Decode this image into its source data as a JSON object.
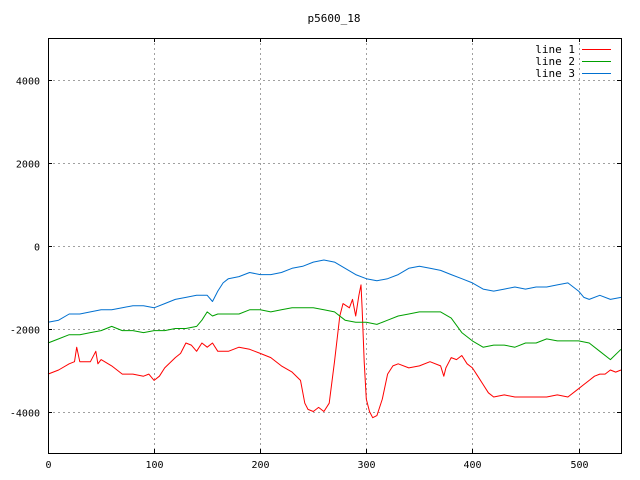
{
  "chart_data": {
    "type": "line",
    "title": "p5600_18",
    "xlabel": "",
    "ylabel": "",
    "xlim": [
      0,
      540
    ],
    "ylim": [
      -5000,
      5000
    ],
    "xticks": [
      0,
      100,
      200,
      300,
      400,
      500
    ],
    "yticks": [
      -4000,
      -2000,
      0,
      2000,
      4000
    ],
    "grid": true,
    "legend_position": "top-right",
    "series": [
      {
        "name": "line 1",
        "color": "#ff0000",
        "x": [
          0,
          10,
          20,
          25,
          27,
          30,
          40,
          45,
          47,
          50,
          60,
          70,
          80,
          90,
          95,
          100,
          105,
          110,
          120,
          125,
          130,
          135,
          140,
          145,
          150,
          155,
          160,
          170,
          180,
          190,
          200,
          210,
          220,
          230,
          238,
          242,
          245,
          250,
          255,
          260,
          265,
          270,
          275,
          278,
          281,
          284,
          287,
          290,
          293,
          295,
          296,
          298,
          300,
          303,
          306,
          310,
          315,
          320,
          325,
          330,
          340,
          350,
          360,
          370,
          373,
          375,
          378,
          380,
          385,
          390,
          395,
          400,
          405,
          410,
          415,
          420,
          430,
          440,
          450,
          460,
          470,
          480,
          490,
          500,
          505,
          510,
          515,
          520,
          525,
          530,
          535,
          540
        ],
        "values": [
          -3100,
          -3000,
          -2850,
          -2800,
          -2450,
          -2800,
          -2800,
          -2550,
          -2850,
          -2750,
          -2900,
          -3100,
          -3100,
          -3150,
          -3100,
          -3250,
          -3150,
          -2950,
          -2700,
          -2600,
          -2350,
          -2400,
          -2550,
          -2350,
          -2450,
          -2350,
          -2550,
          -2550,
          -2450,
          -2500,
          -2600,
          -2700,
          -2900,
          -3050,
          -3250,
          -3800,
          -3950,
          -4000,
          -3900,
          -4000,
          -3800,
          -2800,
          -1700,
          -1400,
          -1450,
          -1500,
          -1300,
          -1700,
          -1200,
          -950,
          -1500,
          -2800,
          -3700,
          -4000,
          -4150,
          -4100,
          -3700,
          -3100,
          -2900,
          -2850,
          -2950,
          -2900,
          -2800,
          -2900,
          -3150,
          -2950,
          -2800,
          -2700,
          -2750,
          -2650,
          -2850,
          -2950,
          -3150,
          -3350,
          -3550,
          -3650,
          -3600,
          -3650,
          -3650,
          -3650,
          -3650,
          -3600,
          -3650,
          -3450,
          -3350,
          -3250,
          -3150,
          -3100,
          -3100,
          -3000,
          -3050,
          -3000
        ]
      },
      {
        "name": "line 2",
        "color": "#00a000",
        "x": [
          0,
          10,
          20,
          30,
          40,
          50,
          60,
          70,
          80,
          90,
          100,
          110,
          120,
          130,
          140,
          145,
          150,
          155,
          160,
          170,
          180,
          190,
          200,
          210,
          220,
          230,
          240,
          250,
          260,
          270,
          280,
          290,
          300,
          310,
          320,
          330,
          340,
          350,
          360,
          370,
          380,
          390,
          400,
          410,
          420,
          430,
          440,
          450,
          460,
          470,
          480,
          490,
          500,
          510,
          520,
          530,
          540
        ],
        "values": [
          -2350,
          -2250,
          -2150,
          -2150,
          -2100,
          -2050,
          -1950,
          -2050,
          -2050,
          -2100,
          -2050,
          -2050,
          -2000,
          -2000,
          -1950,
          -1800,
          -1600,
          -1700,
          -1650,
          -1650,
          -1650,
          -1550,
          -1550,
          -1600,
          -1550,
          -1500,
          -1500,
          -1500,
          -1550,
          -1600,
          -1800,
          -1850,
          -1850,
          -1900,
          -1800,
          -1700,
          -1650,
          -1600,
          -1600,
          -1600,
          -1750,
          -2100,
          -2300,
          -2450,
          -2400,
          -2400,
          -2450,
          -2350,
          -2350,
          -2250,
          -2300,
          -2300,
          -2300,
          -2350,
          -2550,
          -2750,
          -2500
        ]
      },
      {
        "name": "line 3",
        "color": "#0070d0",
        "x": [
          0,
          10,
          20,
          30,
          40,
          50,
          60,
          70,
          80,
          90,
          100,
          110,
          120,
          130,
          140,
          150,
          155,
          160,
          165,
          170,
          180,
          190,
          200,
          210,
          220,
          230,
          240,
          250,
          260,
          270,
          280,
          290,
          300,
          310,
          320,
          330,
          340,
          350,
          360,
          370,
          380,
          390,
          400,
          410,
          420,
          430,
          440,
          450,
          460,
          470,
          480,
          490,
          500,
          505,
          510,
          520,
          530,
          540
        ],
        "values": [
          -1850,
          -1800,
          -1650,
          -1650,
          -1600,
          -1550,
          -1550,
          -1500,
          -1450,
          -1450,
          -1500,
          -1400,
          -1300,
          -1250,
          -1200,
          -1200,
          -1350,
          -1100,
          -900,
          -800,
          -750,
          -650,
          -700,
          -700,
          -650,
          -550,
          -500,
          -400,
          -350,
          -400,
          -550,
          -700,
          -800,
          -850,
          -800,
          -700,
          -550,
          -500,
          -550,
          -600,
          -700,
          -800,
          -900,
          -1050,
          -1100,
          -1050,
          -1000,
          -1050,
          -1000,
          -1000,
          -950,
          -900,
          -1100,
          -1250,
          -1300,
          -1200,
          -1300,
          -1250
        ]
      }
    ]
  }
}
